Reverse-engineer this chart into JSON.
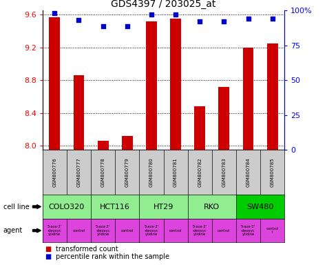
{
  "title": "GDS4397 / 203025_at",
  "samples": [
    "GSM800776",
    "GSM800777",
    "GSM800778",
    "GSM800779",
    "GSM800780",
    "GSM800781",
    "GSM800782",
    "GSM800783",
    "GSM800784",
    "GSM800785"
  ],
  "bar_values": [
    9.57,
    8.86,
    8.06,
    8.12,
    9.52,
    9.55,
    8.48,
    8.72,
    9.2,
    9.25
  ],
  "dot_values": [
    98,
    93,
    89,
    89,
    97,
    97,
    92,
    92,
    94,
    94
  ],
  "ylim_left": [
    7.95,
    9.65
  ],
  "ylim_right": [
    0,
    100
  ],
  "yticks_left": [
    8.0,
    8.4,
    8.8,
    9.2,
    9.6
  ],
  "yticks_right": [
    0,
    25,
    50,
    75,
    100
  ],
  "bar_color": "#cc0000",
  "dot_color": "#0000cc",
  "cell_lines": [
    {
      "label": "COLO320",
      "start": 0,
      "end": 2,
      "color": "#90ee90"
    },
    {
      "label": "HCT116",
      "start": 2,
      "end": 4,
      "color": "#90ee90"
    },
    {
      "label": "HT29",
      "start": 4,
      "end": 6,
      "color": "#90ee90"
    },
    {
      "label": "RKO",
      "start": 6,
      "end": 8,
      "color": "#90ee90"
    },
    {
      "label": "SW480",
      "start": 8,
      "end": 10,
      "color": "#00cc00"
    }
  ],
  "agents": [
    {
      "label": "5-aza-2'\n-deoxyc\nytidine",
      "color": "#dd44dd"
    },
    {
      "label": "control",
      "color": "#dd44dd"
    },
    {
      "label": "5-aza-2'\n-deoxyc\nytidine",
      "color": "#dd44dd"
    },
    {
      "label": "control",
      "color": "#dd44dd"
    },
    {
      "label": "5-aza-2'\n-deoxyc\nytidine",
      "color": "#dd44dd"
    },
    {
      "label": "control",
      "color": "#dd44dd"
    },
    {
      "label": "5-aza-2'\n-deoxyc\nytidine",
      "color": "#dd44dd"
    },
    {
      "label": "control",
      "color": "#dd44dd"
    },
    {
      "label": "5-aza-2'\n-deoxyc\nytidine",
      "color": "#dd44dd"
    },
    {
      "label": "control\nl",
      "color": "#dd44dd"
    }
  ],
  "legend_red": "transformed count",
  "legend_blue": "percentile rank within the sample",
  "sample_bg": "#cccccc",
  "grid_color": "#888888",
  "ybase": 7.95
}
